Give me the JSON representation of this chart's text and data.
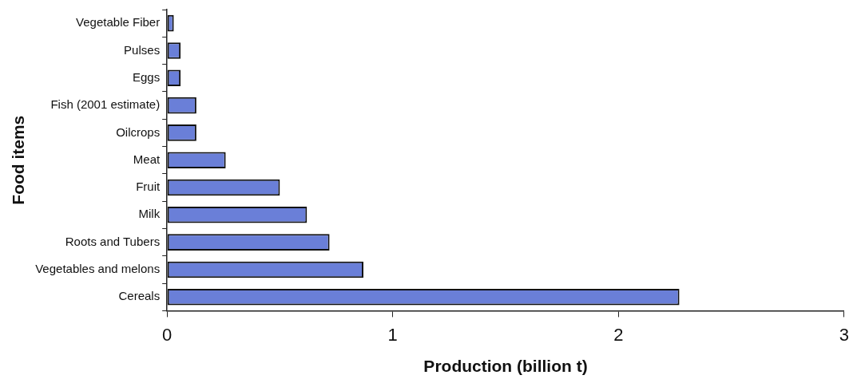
{
  "chart_data": {
    "type": "bar",
    "orientation": "horizontal",
    "xlabel": "Production (billion t)",
    "ylabel": "Food items",
    "categories": [
      "Vegetable Fiber",
      "Pulses",
      "Eggs",
      "Fish (2001 estimate)",
      "Oilcrops",
      "Meat",
      "Fruit",
      "Milk",
      "Roots and Tubers",
      "Vegetables and melons",
      "Cereals"
    ],
    "values": [
      0.03,
      0.06,
      0.06,
      0.13,
      0.13,
      0.26,
      0.5,
      0.62,
      0.72,
      0.87,
      2.27
    ],
    "color": "#6a7fd8",
    "xlim": [
      0,
      3
    ],
    "xticks": [
      0,
      1,
      2,
      3
    ],
    "grid": false,
    "legend": false
  }
}
